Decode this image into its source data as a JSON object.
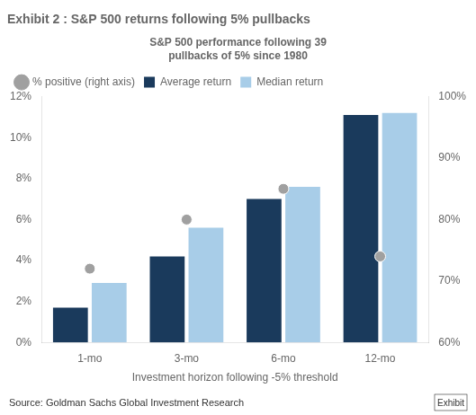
{
  "chart_data": {
    "type": "bar",
    "title": "Exhibit 2 : S&P 500 returns following 5% pullbacks",
    "subtitle": [
      "S&P 500 performance following 39",
      "pullbacks of 5% since 1980"
    ],
    "xlabel": "Investment horizon following -5% threshold",
    "categories": [
      "1-mo",
      "3-mo",
      "6-mo",
      "12-mo"
    ],
    "series": [
      {
        "name": "Average return",
        "color": "#1a3a5c",
        "values": [
          1.7,
          4.2,
          7.0,
          11.1
        ]
      },
      {
        "name": "Median return",
        "color": "#a8cde8",
        "values": [
          2.9,
          5.6,
          7.6,
          11.2
        ]
      },
      {
        "name": "% positive (right axis)",
        "type": "scatter",
        "marker": "circle",
        "color": "#a0a0a0",
        "axis": "y2",
        "values": [
          72,
          80,
          85,
          74
        ]
      }
    ],
    "ylim": [
      0,
      12
    ],
    "yticks": [
      {
        "value": 0,
        "label": "0%"
      },
      {
        "value": 2,
        "label": "2%"
      },
      {
        "value": 4,
        "label": "4%"
      },
      {
        "value": 6,
        "label": "6%"
      },
      {
        "value": 8,
        "label": "8%"
      },
      {
        "value": 10,
        "label": "10%"
      },
      {
        "value": 12,
        "label": "12%"
      }
    ],
    "y2lim": [
      60,
      100
    ],
    "y2ticks": [
      {
        "value": 60,
        "label": "60%"
      },
      {
        "value": 70,
        "label": "70%"
      },
      {
        "value": 80,
        "label": "80%"
      },
      {
        "value": 90,
        "label": "90%"
      },
      {
        "value": 100,
        "label": "100%"
      }
    ],
    "grid": false,
    "legend": "upper left",
    "annotations": [
      "Source: Goldman Sachs Global Investment Research",
      "Exhibit"
    ]
  }
}
